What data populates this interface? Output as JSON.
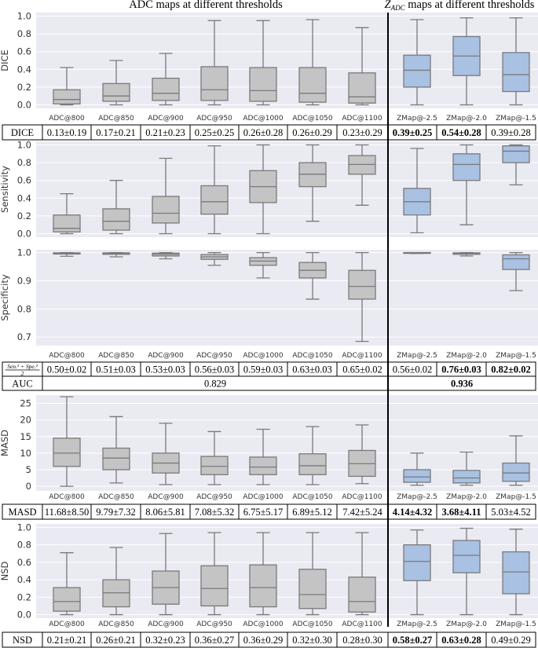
{
  "titles": {
    "left": "ADC maps at different thresholds",
    "right_sym": "Z",
    "right_sub": "ADC",
    "right_rest": " maps at different thresholds"
  },
  "colors": {
    "adc": "#c4c4c4",
    "zmap": "#a9c1e2",
    "panel_bg": "#eaeaf2",
    "grid": "#ffffff",
    "whisker": "#7a7a7a",
    "divider": "#000000"
  },
  "chart_data": [
    {
      "type": "box",
      "title": "",
      "ylabel": "DICE",
      "ylim": [
        -0.04,
        1.04
      ],
      "yticks": [
        0.0,
        0.2,
        0.4,
        0.6,
        0.8,
        1.0
      ],
      "categories": [
        "ADC@800",
        "ADC@850",
        "ADC@900",
        "ADC@950",
        "ADC@1000",
        "ADC@1050",
        "ADC@1100",
        "ZMap@-2.5",
        "ZMap@-2.0",
        "ZMap@-1.5"
      ],
      "boxes": [
        {
          "min": 0.0,
          "q1": 0.01,
          "med": 0.06,
          "q3": 0.17,
          "max": 0.42
        },
        {
          "min": 0.0,
          "q1": 0.04,
          "med": 0.1,
          "q3": 0.24,
          "max": 0.5
        },
        {
          "min": 0.0,
          "q1": 0.05,
          "med": 0.13,
          "q3": 0.3,
          "max": 0.58
        },
        {
          "min": 0.0,
          "q1": 0.05,
          "med": 0.17,
          "q3": 0.43,
          "max": 0.95
        },
        {
          "min": 0.0,
          "q1": 0.04,
          "med": 0.16,
          "q3": 0.42,
          "max": 0.95
        },
        {
          "min": 0.0,
          "q1": 0.03,
          "med": 0.13,
          "q3": 0.42,
          "max": 0.96
        },
        {
          "min": 0.0,
          "q1": 0.02,
          "med": 0.09,
          "q3": 0.36,
          "max": 0.87
        },
        {
          "min": 0.0,
          "q1": 0.2,
          "med": 0.39,
          "q3": 0.56,
          "max": 0.96
        },
        {
          "min": 0.0,
          "q1": 0.33,
          "med": 0.55,
          "q3": 0.77,
          "max": 0.98
        },
        {
          "min": 0.0,
          "q1": 0.15,
          "med": 0.34,
          "q3": 0.59,
          "max": 0.98
        }
      ]
    },
    {
      "type": "box",
      "title": "",
      "ylabel": "Sensitivity",
      "ylim": [
        -0.04,
        1.04
      ],
      "yticks": [
        0.0,
        0.2,
        0.4,
        0.6,
        0.8,
        1.0
      ],
      "categories": [
        "",
        "",
        "",
        "",
        "",
        "",
        "",
        "",
        "",
        ""
      ],
      "boxes": [
        {
          "min": 0.0,
          "q1": 0.02,
          "med": 0.06,
          "q3": 0.21,
          "max": 0.45
        },
        {
          "min": 0.0,
          "q1": 0.04,
          "med": 0.14,
          "q3": 0.28,
          "max": 0.6
        },
        {
          "min": 0.0,
          "q1": 0.12,
          "med": 0.23,
          "q3": 0.42,
          "max": 0.85
        },
        {
          "min": 0.0,
          "q1": 0.22,
          "med": 0.36,
          "q3": 0.54,
          "max": 0.99
        },
        {
          "min": 0.0,
          "q1": 0.35,
          "med": 0.53,
          "q3": 0.71,
          "max": 1.0
        },
        {
          "min": 0.14,
          "q1": 0.53,
          "med": 0.67,
          "q3": 0.8,
          "max": 1.0
        },
        {
          "min": 0.32,
          "q1": 0.67,
          "med": 0.78,
          "q3": 0.88,
          "max": 1.0
        },
        {
          "min": 0.01,
          "q1": 0.21,
          "med": 0.36,
          "q3": 0.51,
          "max": 0.96
        },
        {
          "min": 0.1,
          "q1": 0.6,
          "med": 0.78,
          "q3": 0.9,
          "max": 1.0
        },
        {
          "min": 0.55,
          "q1": 0.8,
          "med": 0.93,
          "q3": 0.99,
          "max": 1.0
        }
      ]
    },
    {
      "type": "box",
      "title": "",
      "ylabel": "Specificity",
      "ylim": [
        0.67,
        1.01
      ],
      "yticks": [
        0.7,
        0.8,
        0.9,
        1.0
      ],
      "categories": [
        "ADC@800",
        "ADC@850",
        "ADC@900",
        "ADC@950",
        "ADC@1000",
        "ADC@1050",
        "ADC@1100",
        "ZMap@-2.5",
        "ZMap@-2.0",
        "ZMap@-1.5"
      ],
      "boxes": [
        {
          "min": 0.987,
          "q1": 0.995,
          "med": 0.998,
          "q3": 0.999,
          "max": 1.0
        },
        {
          "min": 0.985,
          "q1": 0.994,
          "med": 0.997,
          "q3": 0.999,
          "max": 1.0
        },
        {
          "min": 0.978,
          "q1": 0.988,
          "med": 0.994,
          "q3": 0.998,
          "max": 1.0
        },
        {
          "min": 0.955,
          "q1": 0.976,
          "med": 0.985,
          "q3": 0.993,
          "max": 1.0
        },
        {
          "min": 0.91,
          "q1": 0.955,
          "med": 0.97,
          "q3": 0.982,
          "max": 1.0
        },
        {
          "min": 0.835,
          "q1": 0.91,
          "med": 0.937,
          "q3": 0.965,
          "max": 1.0
        },
        {
          "min": 0.685,
          "q1": 0.835,
          "med": 0.88,
          "q3": 0.937,
          "max": 1.0
        },
        {
          "min": 0.997,
          "q1": 0.999,
          "med": 1.0,
          "q3": 1.0,
          "max": 1.0
        },
        {
          "min": 0.988,
          "q1": 0.994,
          "med": 0.997,
          "q3": 0.999,
          "max": 1.0
        },
        {
          "min": 0.865,
          "q1": 0.94,
          "med": 0.978,
          "q3": 0.992,
          "max": 1.0
        }
      ]
    },
    {
      "type": "box",
      "title": "",
      "ylabel": "MASD",
      "ylim": [
        -1.4,
        27.5
      ],
      "yticks": [
        0,
        5,
        10,
        15,
        20,
        25
      ],
      "categories": [
        "ADC@800",
        "ADC@850",
        "ADC@900",
        "ADC@950",
        "ADC@1000",
        "ADC@1050",
        "ADC@1100",
        "ZMap@-2.5",
        "ZMap@-2.0",
        "ZMap@-1.5"
      ],
      "boxes": [
        {
          "min": 0.0,
          "q1": 6.0,
          "med": 10.0,
          "q3": 14.5,
          "max": 27.0
        },
        {
          "min": 1.0,
          "q1": 5.0,
          "med": 8.5,
          "q3": 11.5,
          "max": 21.0
        },
        {
          "min": 0.5,
          "q1": 4.0,
          "med": 7.0,
          "q3": 10.0,
          "max": 19.0
        },
        {
          "min": 0.5,
          "q1": 3.5,
          "med": 6.0,
          "q3": 9.0,
          "max": 16.5
        },
        {
          "min": 0.5,
          "q1": 3.5,
          "med": 5.8,
          "q3": 8.8,
          "max": 17.2
        },
        {
          "min": 0.5,
          "q1": 3.5,
          "med": 6.2,
          "q3": 9.8,
          "max": 18.0
        },
        {
          "min": 0.8,
          "q1": 3.0,
          "med": 6.8,
          "q3": 10.8,
          "max": 18.5
        },
        {
          "min": 0.3,
          "q1": 1.2,
          "med": 2.8,
          "q3": 5.0,
          "max": 10.0
        },
        {
          "min": 0.3,
          "q1": 1.0,
          "med": 2.5,
          "q3": 4.8,
          "max": 10.3
        },
        {
          "min": 0.3,
          "q1": 1.5,
          "med": 4.0,
          "q3": 7.0,
          "max": 15.2
        }
      ]
    },
    {
      "type": "box",
      "title": "",
      "ylabel": "NSD",
      "ylim": [
        -0.04,
        1.04
      ],
      "yticks": [
        0.0,
        0.2,
        0.4,
        0.6,
        0.8,
        1.0
      ],
      "categories": [
        "ADC@800",
        "ADC@850",
        "ADC@900",
        "ADC@950",
        "ADC@1000",
        "ADC@1050",
        "ADC@1100",
        "ZMap@-2.5",
        "ZMap@-2.0",
        "ZMap@-1.5"
      ],
      "boxes": [
        {
          "min": 0.0,
          "q1": 0.04,
          "med": 0.15,
          "q3": 0.31,
          "max": 0.71
        },
        {
          "min": 0.0,
          "q1": 0.09,
          "med": 0.25,
          "q3": 0.4,
          "max": 0.77
        },
        {
          "min": 0.0,
          "q1": 0.12,
          "med": 0.31,
          "q3": 0.5,
          "max": 0.93
        },
        {
          "min": 0.0,
          "q1": 0.1,
          "med": 0.3,
          "q3": 0.56,
          "max": 0.94
        },
        {
          "min": 0.0,
          "q1": 0.09,
          "med": 0.31,
          "q3": 0.57,
          "max": 0.94
        },
        {
          "min": 0.0,
          "q1": 0.07,
          "med": 0.23,
          "q3": 0.52,
          "max": 0.94
        },
        {
          "min": 0.0,
          "q1": 0.03,
          "med": 0.15,
          "q3": 0.43,
          "max": 0.94
        },
        {
          "min": 0.0,
          "q1": 0.39,
          "med": 0.61,
          "q3": 0.8,
          "max": 0.97
        },
        {
          "min": 0.0,
          "q1": 0.48,
          "med": 0.68,
          "q3": 0.85,
          "max": 0.99
        },
        {
          "min": 0.0,
          "q1": 0.24,
          "med": 0.49,
          "q3": 0.72,
          "max": 0.98
        }
      ]
    }
  ],
  "tables": [
    {
      "label": "DICE",
      "cells": [
        "0.13±0.19",
        "0.17±0.21",
        "0.21±0.23",
        "0.25±0.25",
        "0.26±0.28",
        "0.26±0.29",
        "0.23±0.29",
        "0.39±0.25",
        "0.54±0.28",
        "0.39±0.28"
      ],
      "bold": [
        false,
        false,
        false,
        false,
        false,
        false,
        false,
        true,
        true,
        false
      ]
    },
    {
      "label_num": "Sen.² + Spe.²",
      "label_den": "2",
      "cells": [
        "0.50±0.02",
        "0.51±0.03",
        "0.53±0.03",
        "0.56±0.03",
        "0.59±0.03",
        "0.63±0.03",
        "0.65±0.02",
        "0.56±0.02",
        "0.76±0.03",
        "0.82±0.02"
      ],
      "bold": [
        false,
        false,
        false,
        false,
        false,
        false,
        false,
        false,
        true,
        true
      ]
    },
    {
      "label": "AUC",
      "adc_value": "0.829",
      "zmap_value": "0.936"
    },
    {
      "label": "MASD",
      "cells": [
        "11.68±8.50",
        "9.79±7.32",
        "8.06±5.81",
        "7.08±5.32",
        "6.75±5.17",
        "6.89±5.12",
        "7.42±5.24",
        "4.14±4.32",
        "3.68±4.11",
        "5.03±4.52"
      ],
      "bold": [
        false,
        false,
        false,
        false,
        false,
        false,
        false,
        true,
        true,
        false
      ]
    },
    {
      "label": "NSD",
      "cells": [
        "0.21±0.21",
        "0.26±0.21",
        "0.32±0.23",
        "0.36±0.27",
        "0.36±0.29",
        "0.32±0.30",
        "0.28±0.30",
        "0.58±0.27",
        "0.63±0.28",
        "0.49±0.29"
      ],
      "bold": [
        false,
        false,
        false,
        false,
        false,
        false,
        false,
        true,
        true,
        false
      ]
    }
  ]
}
